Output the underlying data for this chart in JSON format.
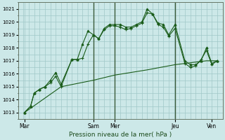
{
  "xlabel": "Pression niveau de la mer( hPa )",
  "bg_color": "#cce8e8",
  "grid_color": "#a0c8c8",
  "line_color": "#1a5c1a",
  "ylim": [
    1012.5,
    1021.5
  ],
  "yticks": [
    1013,
    1014,
    1015,
    1016,
    1017,
    1018,
    1019,
    1020,
    1021
  ],
  "xlim": [
    0,
    228
  ],
  "x_tick_positions": [
    7,
    84,
    108,
    175,
    216
  ],
  "x_tick_labels": [
    "Mar",
    "Sam",
    "Mer",
    "Jeu",
    "Ven"
  ],
  "vlines": [
    84,
    108,
    175
  ],
  "series1_x": [
    7,
    14,
    18,
    24,
    30,
    36,
    42,
    48,
    60,
    66,
    72,
    78,
    84,
    90,
    96,
    102,
    108,
    114,
    120,
    126,
    132,
    138,
    144,
    150,
    156,
    162,
    168,
    175,
    186,
    192,
    198,
    204,
    210,
    216,
    222
  ],
  "series1_y": [
    1013.0,
    1013.5,
    1014.5,
    1014.8,
    1015.0,
    1015.5,
    1016.1,
    1015.2,
    1017.1,
    1017.1,
    1018.3,
    1019.3,
    1019.0,
    1018.7,
    1019.5,
    1019.8,
    1019.8,
    1019.8,
    1019.6,
    1019.6,
    1019.8,
    1020.0,
    1021.0,
    1020.6,
    1019.9,
    1019.8,
    1019.0,
    1019.8,
    1017.0,
    1016.7,
    1016.7,
    1017.0,
    1018.0,
    1016.8,
    1017.0
  ],
  "series2_x": [
    7,
    14,
    18,
    24,
    30,
    36,
    42,
    48,
    60,
    66,
    72,
    78,
    84,
    90,
    96,
    102,
    108,
    114,
    120,
    126,
    132,
    138,
    144,
    150,
    156,
    162,
    168,
    175,
    186,
    192,
    198,
    204,
    210,
    216,
    222
  ],
  "series2_y": [
    1013.0,
    1013.5,
    1014.5,
    1014.8,
    1015.0,
    1015.3,
    1015.8,
    1015.0,
    1017.1,
    1017.1,
    1017.2,
    1018.3,
    1019.0,
    1018.7,
    1019.4,
    1019.7,
    1019.7,
    1019.6,
    1019.4,
    1019.5,
    1019.7,
    1019.9,
    1020.7,
    1020.6,
    1019.8,
    1019.6,
    1018.9,
    1019.5,
    1016.8,
    1016.5,
    1016.6,
    1017.1,
    1017.8,
    1016.7,
    1017.0
  ],
  "series3_x": [
    7,
    48,
    84,
    108,
    144,
    175,
    210,
    222
  ],
  "series3_y": [
    1013.0,
    1015.0,
    1015.5,
    1015.9,
    1016.3,
    1016.7,
    1017.0,
    1017.0
  ]
}
